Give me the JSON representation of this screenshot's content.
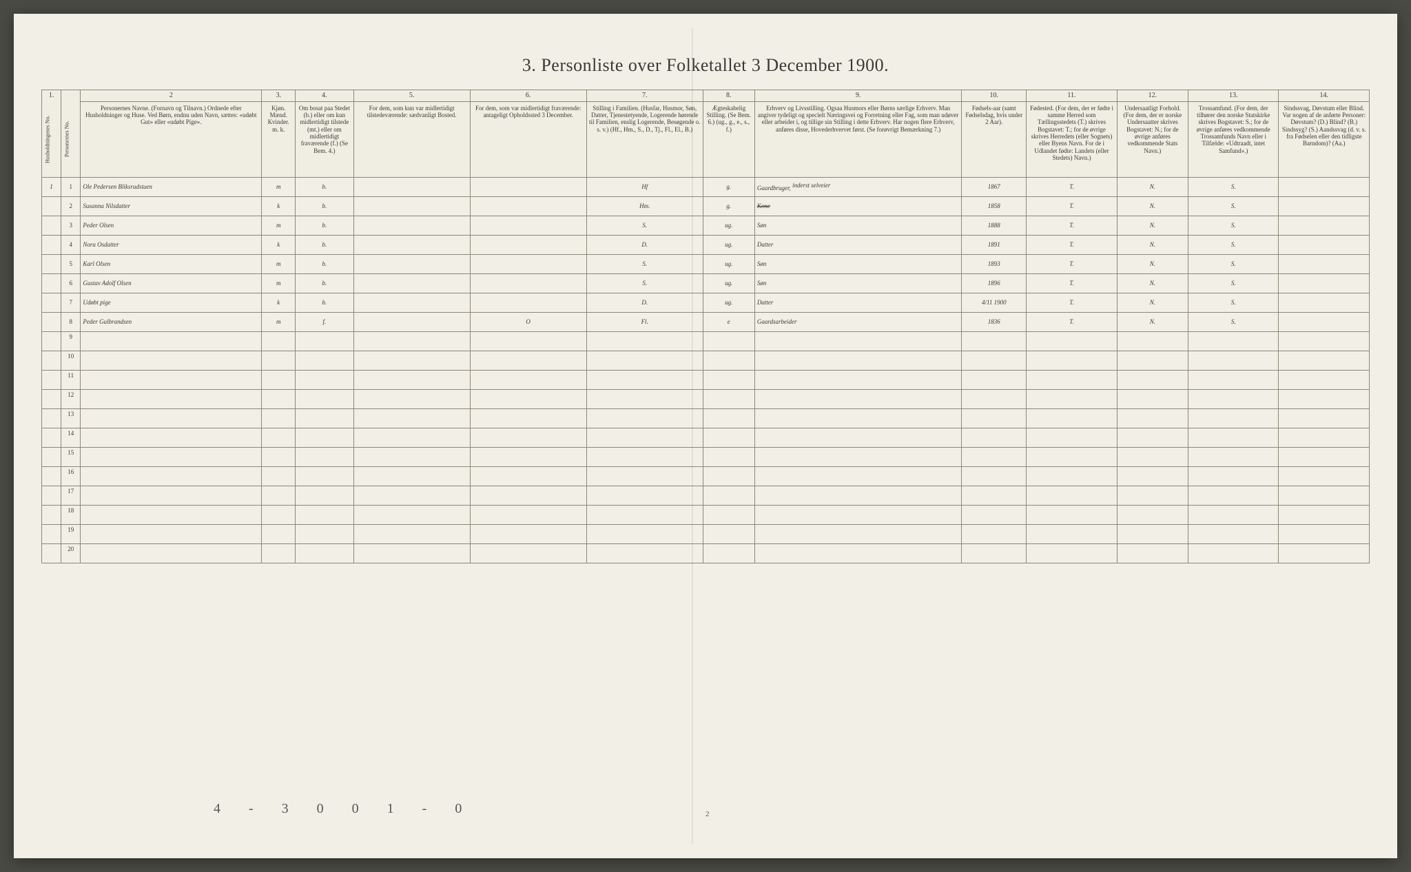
{
  "title": "3. Personliste over Folketallet 3 December 1900.",
  "column_numbers": [
    "1.",
    "",
    "2",
    "3.",
    "4.",
    "5.",
    "6.",
    "7.",
    "8.",
    "9.",
    "10.",
    "11.",
    "12.",
    "13.",
    "14."
  ],
  "headers": {
    "c1": "Husholdningenes No.",
    "c1b": "Personernes No.",
    "c2": "Personernes Navne.\n(Fornavn og Tilnavn.)\nOrdnede efter Husholdninger og Huse.\nVed Børn, endnu uden Navn, sættes: «udøbt Gut» eller «udøbt Pige».",
    "c3": "Kjøn.\nMænd. Kvinder.\nm.  k.",
    "c4": "Om bosat paa Stedet (b.) eller om kun midlertidigt tilstede (mt.) eller om midlertidigt fraværende (f.)\n(Se Bem. 4.)",
    "c5": "For dem, som kun var midlertidigt tilstedeværende:\nsædvanligt Bosted.",
    "c6": "For dem, som var midlertidigt fraværende:\nantageligt Opholdssted 3 December.",
    "c7": "Stilling i Familien.\n(Husfar, Husmor, Søn, Datter, Tjenestetyende, Logerende hørende til Familien, enslig Logerende, Besøgende o. s. v.)\n(Hf., Hm., S., D., Tj., Fl., El., B.)",
    "c8": "Ægteskabelig Stilling.\n(Se Bem. 6.)\n(ug., g., e., s., f.)",
    "c9": "Erhverv og Livsstilling.\nOgsaa Husmors eller Børns særlige Erhverv. Man angiver tydeligt og specielt Næringsvei og Forretning eller Fag, som man udøver eller arbeider i, og tillige sin Stilling i dette Erhverv. Har nogen flere Erhverv, anføres disse, Hovederhvervet først.\n(Se forøvrigt Bemærkning 7.)",
    "c10": "Fødsels-aar\n(samt Fødselsdag, hvis under 2 Aar).",
    "c11": "Fødested.\n(For dem, der er fødte i samme Herred som Tællingsstedets (T.) skrives Bogstavet: T.; for de øvrige skrives Herredets (eller Sognets) eller Byens Navn. For de i Udlandet fødte: Landets (eller Stedets) Navn.)",
    "c12": "Undersaatligt Forhold.\n(For dem, der er norske Undersaatter skrives Bogstavet: N.; for de øvrige anføres vedkommende Stats Navn.)",
    "c13": "Trossamfund.\n(For dem, der tilhører den norske Statskirke skrives Bogstavet: S.; for de øvrige anføres vedkommende Trossamfunds Navn eller i Tilfælde: «Udtraadt, intet Samfund».)",
    "c14": "Sindssvag, Døvstum eller Blind.\nVar nogen af de anførte Personer:\nDøvstum? (D.)\nBlind? (B.)\nSindssyg? (S.)\nAandssvag (d. v. s. fra Fødselen eller den tidligste Barndom)? (Aa.)"
  },
  "rows": [
    {
      "hh": "1",
      "n": "1",
      "name": "Ole Pedersen Bliksrudstuen",
      "sex": "m",
      "res": "b.",
      "c5": "",
      "c6": "",
      "pos": "Hf",
      "mar": "g.",
      "occ": "Gaardbruger,",
      "occ_note": "inderst selveier",
      "year": "1867",
      "born": "T.",
      "nat": "N.",
      "rel": "S.",
      "c14": ""
    },
    {
      "hh": "",
      "n": "2",
      "name": "Susanna Nilsdatter",
      "sex": "k",
      "res": "b.",
      "c5": "",
      "c6": "",
      "pos": "Hm.",
      "mar": "g.",
      "occ": "Kone",
      "year": "1858",
      "born": "T.",
      "nat": "N.",
      "rel": "S.",
      "c14": ""
    },
    {
      "hh": "",
      "n": "3",
      "name": "Peder Olsen",
      "sex": "m",
      "res": "b.",
      "c5": "",
      "c6": "",
      "pos": "S.",
      "mar": "ug.",
      "occ": "Søn",
      "year": "1888",
      "born": "T.",
      "nat": "N.",
      "rel": "S.",
      "c14": ""
    },
    {
      "hh": "",
      "n": "4",
      "name": "Nora Osdatter",
      "sex": "k",
      "res": "b.",
      "c5": "",
      "c6": "",
      "pos": "D.",
      "mar": "ug.",
      "occ": "Datter",
      "year": "1891",
      "born": "T.",
      "nat": "N.",
      "rel": "S.",
      "c14": ""
    },
    {
      "hh": "",
      "n": "5",
      "name": "Karl Olsen",
      "sex": "m",
      "res": "b.",
      "c5": "",
      "c6": "",
      "pos": "S.",
      "mar": "ug.",
      "occ": "Søn",
      "year": "1893",
      "born": "T.",
      "nat": "N.",
      "rel": "S.",
      "c14": ""
    },
    {
      "hh": "",
      "n": "6",
      "name": "Gustav Adolf Olsen",
      "sex": "m",
      "res": "b.",
      "c5": "",
      "c6": "",
      "pos": "S.",
      "mar": "ug.",
      "occ": "Søn",
      "year": "1896",
      "born": "T.",
      "nat": "N.",
      "rel": "S.",
      "c14": ""
    },
    {
      "hh": "",
      "n": "7",
      "name": "Udøbt pige",
      "sex": "k",
      "res": "b.",
      "c5": "",
      "c6": "",
      "pos": "D.",
      "mar": "ug.",
      "occ": "Datter",
      "year": "4/11 1900",
      "born": "T.",
      "nat": "N.",
      "rel": "S.",
      "c14": ""
    },
    {
      "hh": "",
      "n": "8",
      "name": "Peder Gulbrandsen",
      "sex": "m",
      "res": "f.",
      "c5": "",
      "c6": "O",
      "pos": "Fl.",
      "mar": "e",
      "occ": "Gaardsarbeider",
      "year": "1836",
      "born": "T.",
      "nat": "N.",
      "rel": "S.",
      "c14": ""
    }
  ],
  "empty_row_numbers": [
    "9",
    "10",
    "11",
    "12",
    "13",
    "14",
    "15",
    "16",
    "17",
    "18",
    "19",
    "20"
  ],
  "footer": "4 - 3  0  0  1 - 0",
  "page_number": "2",
  "column_widths_pct": [
    1.5,
    1.5,
    14,
    2.6,
    4.5,
    9,
    9,
    9,
    4,
    16,
    5,
    7,
    5.5,
    7,
    7
  ],
  "colors": {
    "paper": "#f2efe6",
    "ink": "#2b2b28",
    "rule": "#8a8876",
    "background": "#4a4a45"
  }
}
